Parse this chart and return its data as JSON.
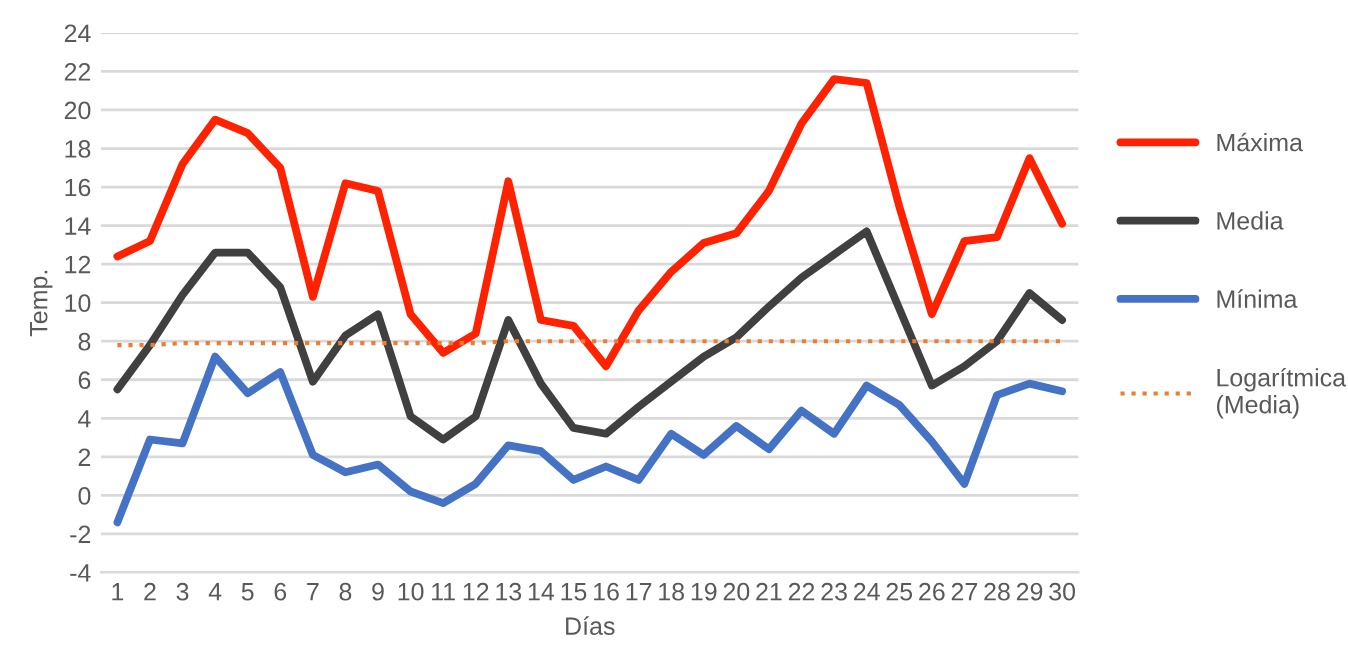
{
  "chart_data": {
    "type": "line",
    "xlabel": "Días",
    "ylabel": "Temp.",
    "categories": [
      "1",
      "2",
      "3",
      "4",
      "5",
      "6",
      "7",
      "8",
      "9",
      "10",
      "11",
      "12",
      "13",
      "14",
      "15",
      "16",
      "17",
      "18",
      "19",
      "20",
      "21",
      "22",
      "23",
      "24",
      "25",
      "26",
      "27",
      "28",
      "29",
      "30"
    ],
    "series": [
      {
        "name": "Máxima",
        "color": "#ff2200",
        "values": [
          12.4,
          13.2,
          17.2,
          19.5,
          18.8,
          17.0,
          10.3,
          16.2,
          15.8,
          9.4,
          7.4,
          8.4,
          16.3,
          9.1,
          8.8,
          6.7,
          9.6,
          11.6,
          13.1,
          13.6,
          15.8,
          19.3,
          21.6,
          21.4,
          15.0,
          9.4,
          13.2,
          13.4,
          17.5,
          14.1
        ]
      },
      {
        "name": "Media",
        "color": "#404040",
        "values": [
          5.5,
          7.8,
          10.4,
          12.6,
          12.6,
          10.8,
          5.9,
          8.3,
          9.4,
          4.1,
          2.9,
          4.1,
          9.1,
          5.8,
          3.5,
          3.2,
          4.6,
          5.9,
          7.2,
          8.2,
          9.8,
          11.3,
          12.5,
          13.7,
          9.7,
          5.7,
          6.7,
          8.0,
          10.5,
          9.1
        ]
      },
      {
        "name": "Mínima",
        "color": "#4472c4",
        "values": [
          -1.4,
          2.9,
          2.7,
          7.2,
          5.3,
          6.4,
          2.1,
          1.2,
          1.6,
          0.2,
          -0.4,
          0.6,
          2.6,
          2.3,
          0.8,
          1.5,
          0.8,
          3.2,
          2.1,
          3.6,
          2.4,
          4.4,
          3.2,
          5.7,
          4.7,
          2.8,
          0.6,
          5.2,
          5.8,
          5.4
        ]
      },
      {
        "name": "Logarítmica\n(Media)",
        "color": "#ed7d31",
        "line_style": "dotted",
        "values": [
          7.8,
          7.8,
          7.9,
          7.9,
          7.9,
          7.9,
          7.9,
          7.9,
          7.9,
          7.9,
          7.9,
          7.9,
          8.0,
          8.0,
          8.0,
          8.0,
          8.0,
          8.0,
          8.0,
          8.0,
          8.0,
          8.0,
          8.0,
          8.0,
          8.0,
          8.0,
          8.0,
          8.0,
          8.0,
          8.0
        ]
      }
    ],
    "ylim": [
      -4,
      24
    ],
    "yticks": [
      -4,
      -2,
      0,
      2,
      4,
      6,
      8,
      10,
      12,
      14,
      16,
      18,
      20,
      22,
      24
    ],
    "grid": "y",
    "legend": "right",
    "line_style": "solid",
    "marker": "none"
  }
}
